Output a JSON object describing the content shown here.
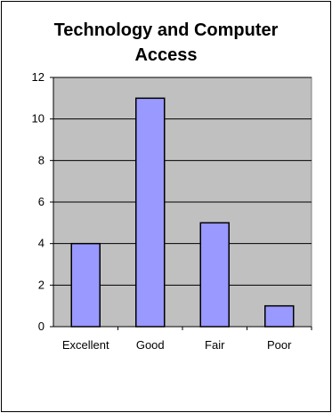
{
  "chart_data": {
    "type": "bar",
    "title_lines": [
      "Technology and Computer",
      "Access"
    ],
    "categories": [
      "Excellent",
      "Good",
      "Fair",
      "Poor"
    ],
    "values": [
      4,
      11,
      5,
      1
    ],
    "ylim": [
      0,
      12
    ],
    "yticks": [
      0,
      2,
      4,
      6,
      8,
      10,
      12
    ],
    "grid": true,
    "legend": "none",
    "colors": {
      "bar_fill": "#9999ff",
      "bar_stroke": "#000000",
      "plot_background": "#c0c0c0",
      "gridline": "#000000"
    }
  }
}
